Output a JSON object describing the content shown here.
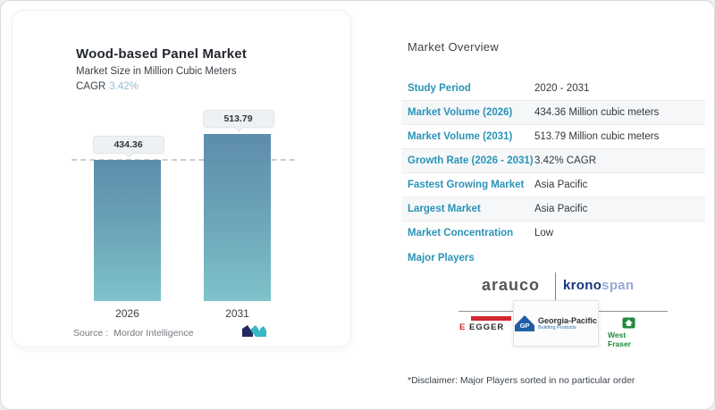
{
  "left_card": {
    "title": "Wood-based Panel Market",
    "subtitle": "Market Size in Million Cubic Meters",
    "cagr_label": "CAGR",
    "cagr_value": "3.42%",
    "source_label": "Source :",
    "source_value": "Mordor Intelligence"
  },
  "chart_data": {
    "type": "bar",
    "title": "Wood-based Panel Market",
    "subtitle": "Market Size in Million Cubic Meters",
    "cagr": "3.42%",
    "categories": [
      "2026",
      "2031"
    ],
    "values": [
      434.36,
      513.79
    ],
    "data_labels": [
      "434.36",
      "513.79"
    ],
    "ylabel": "Million Cubic Meters",
    "ylim": [
      0,
      513.79
    ],
    "reference_line": 434.36,
    "grid": false,
    "legend": "none",
    "bar_color_top": "#5d8cac",
    "bar_color_bottom": "#7fc3cb"
  },
  "overview": {
    "heading": "Market Overview",
    "rows": [
      {
        "label": "Study Period",
        "value": "2020 - 2031"
      },
      {
        "label": "Market Volume (2026)",
        "value": "434.36 Million cubic meters"
      },
      {
        "label": "Market Volume (2031)",
        "value": "513.79 Million cubic meters"
      },
      {
        "label": "Growth Rate (2026 - 2031)",
        "value": "3.42% CAGR"
      },
      {
        "label": "Fastest Growing Market",
        "value": "Asia Pacific"
      },
      {
        "label": "Largest Market",
        "value": "Asia Pacific"
      },
      {
        "label": "Market Concentration",
        "value": "Low"
      }
    ],
    "major_players_label": "Major Players",
    "disclaimer": "*Disclaimer: Major Players sorted in no particular order"
  },
  "players": {
    "arauco": "arauco",
    "kronospan_bold": "krono",
    "kronospan_light": "span",
    "egger_e": "E",
    "egger_text": "EGGER",
    "gp_initials": "GP",
    "gp_name": "Georgia-Pacific",
    "gp_sub": "Building Products",
    "west_fraser": "West Fraser"
  },
  "colors": {
    "accent_label_blue": "#2a93b8",
    "cagr_light_blue": "#97bccd",
    "bar_gradient_top": "#5d8cac",
    "bar_gradient_bottom": "#7fc3cb",
    "egger_red": "#d22630",
    "kronospan_blue": "#16357f",
    "georgia_pacific_blue": "#1f5da5",
    "west_fraser_green": "#1e8a3c",
    "mordor_navy": "#232a60",
    "mordor_teal": "#38b6c3"
  }
}
